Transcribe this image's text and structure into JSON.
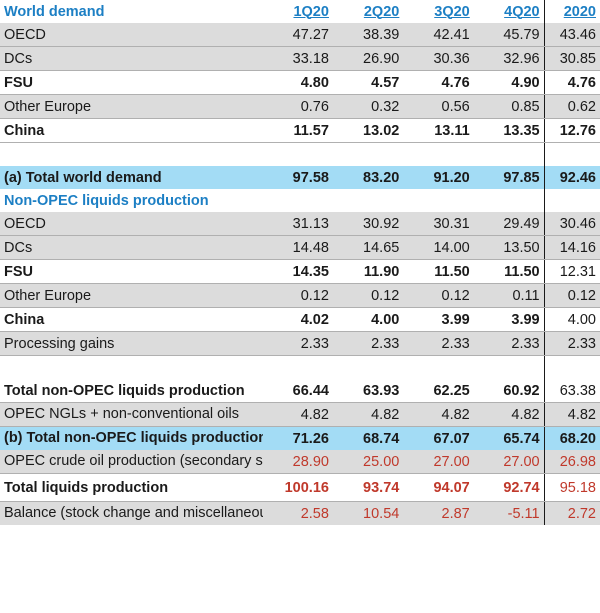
{
  "columns": [
    "1Q20",
    "2Q20",
    "3Q20",
    "4Q20",
    "2020"
  ],
  "sections": {
    "world_demand": "World demand",
    "non_opec": "Non-OPEC liquids production"
  },
  "demand_rows": [
    {
      "label": "OECD",
      "values": [
        "47.27",
        "38.39",
        "42.41",
        "45.79",
        "43.46"
      ]
    },
    {
      "label": "DCs",
      "values": [
        "33.18",
        "26.90",
        "30.36",
        "32.96",
        "30.85"
      ]
    },
    {
      "label": "FSU",
      "values": [
        "4.80",
        "4.57",
        "4.76",
        "4.90",
        "4.76"
      ]
    },
    {
      "label": "Other Europe",
      "values": [
        "0.76",
        "0.32",
        "0.56",
        "0.85",
        "0.62"
      ]
    },
    {
      "label": "China",
      "values": [
        "11.57",
        "13.02",
        "13.11",
        "13.35",
        "12.76"
      ]
    }
  ],
  "total_demand": {
    "label": "(a) Total world demand",
    "values": [
      "97.58",
      "83.20",
      "91.20",
      "97.85",
      "92.46"
    ]
  },
  "supply_rows": [
    {
      "label": "OECD",
      "values": [
        "31.13",
        "30.92",
        "30.31",
        "29.49",
        "30.46"
      ]
    },
    {
      "label": "DCs",
      "values": [
        "14.48",
        "14.65",
        "14.00",
        "13.50",
        "14.16"
      ]
    },
    {
      "label": "FSU",
      "values": [
        "14.35",
        "11.90",
        "11.50",
        "11.50",
        "12.31"
      ]
    },
    {
      "label": "Other Europe",
      "values": [
        "0.12",
        "0.12",
        "0.12",
        "0.11",
        "0.12"
      ]
    },
    {
      "label": "China",
      "values": [
        "4.02",
        "4.00",
        "3.99",
        "3.99",
        "4.00"
      ]
    },
    {
      "label": "Processing gains",
      "values": [
        "2.33",
        "2.33",
        "2.33",
        "2.33",
        "2.33"
      ]
    }
  ],
  "total_non_opec": {
    "label": "Total non-OPEC liquids production",
    "values": [
      "66.44",
      "63.93",
      "62.25",
      "60.92",
      "63.38"
    ]
  },
  "opec_ngls": {
    "label": "OPEC NGLs + non-conventional oils",
    "values": [
      "4.82",
      "4.82",
      "4.82",
      "4.82",
      "4.82"
    ]
  },
  "total_b": {
    "label": "(b) Total non-OPEC liquids production and OPEC NGLs",
    "values": [
      "71.26",
      "68.74",
      "67.07",
      "65.74",
      "68.20"
    ]
  },
  "opec_crude": {
    "label": "OPEC crude oil production (secondary sources)",
    "values": [
      "28.90",
      "25.00",
      "27.00",
      "27.00",
      "26.98"
    ]
  },
  "total_liquids": {
    "label": "Total liquids production",
    "values": [
      "100.16",
      "93.74",
      "94.07",
      "92.74",
      "95.18"
    ]
  },
  "balance": {
    "label": "Balance (stock change and miscellaneous)",
    "values": [
      "2.58",
      "10.54",
      "2.87",
      "-5.11",
      "2.72"
    ]
  }
}
